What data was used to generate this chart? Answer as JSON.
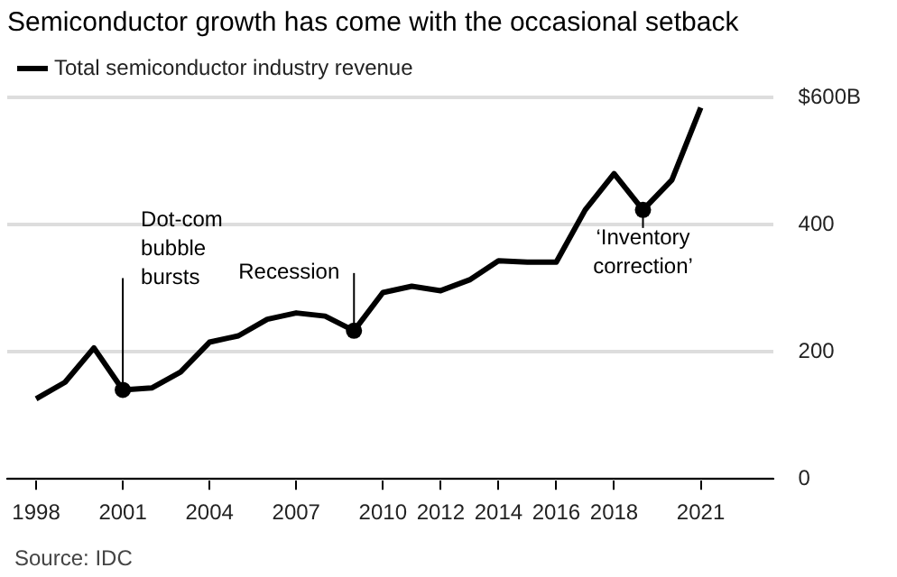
{
  "chart_data": {
    "type": "line",
    "title": "Semiconductor growth has come with the occasional setback",
    "x": [
      1998,
      1999,
      2000,
      2001,
      2002,
      2003,
      2004,
      2005,
      2006,
      2007,
      2008,
      2009,
      2010,
      2011,
      2012,
      2013,
      2014,
      2015,
      2016,
      2017,
      2018,
      2019,
      2020,
      2021
    ],
    "series": [
      {
        "name": "Total semiconductor industry revenue",
        "color": "#000000",
        "values": [
          126,
          152,
          206,
          140,
          143,
          168,
          215,
          225,
          251,
          261,
          256,
          233,
          293,
          303,
          296,
          313,
          343,
          341,
          341,
          423,
          480,
          423,
          470,
          584
        ]
      }
    ],
    "xlim": [
      1997,
      2023.5
    ],
    "xticks": [
      1998,
      2001,
      2004,
      2007,
      2010,
      2012,
      2014,
      2016,
      2018,
      2021
    ],
    "ylim": [
      0,
      600
    ],
    "yticks": [
      0,
      200,
      400,
      {
        "value": 600,
        "label": "$600B"
      }
    ],
    "grid": "y",
    "legend": "top left",
    "marker": "none",
    "line_style": "solid",
    "annotations": [
      {
        "text": "Dot-com bubble bursts",
        "x": 2001,
        "y": 140
      },
      {
        "text": "Recession",
        "x": 2009,
        "y": 233
      },
      {
        "text": "‘Inventory correction’",
        "x": 2019,
        "y": 423
      },
      "Source: IDC"
    ]
  }
}
